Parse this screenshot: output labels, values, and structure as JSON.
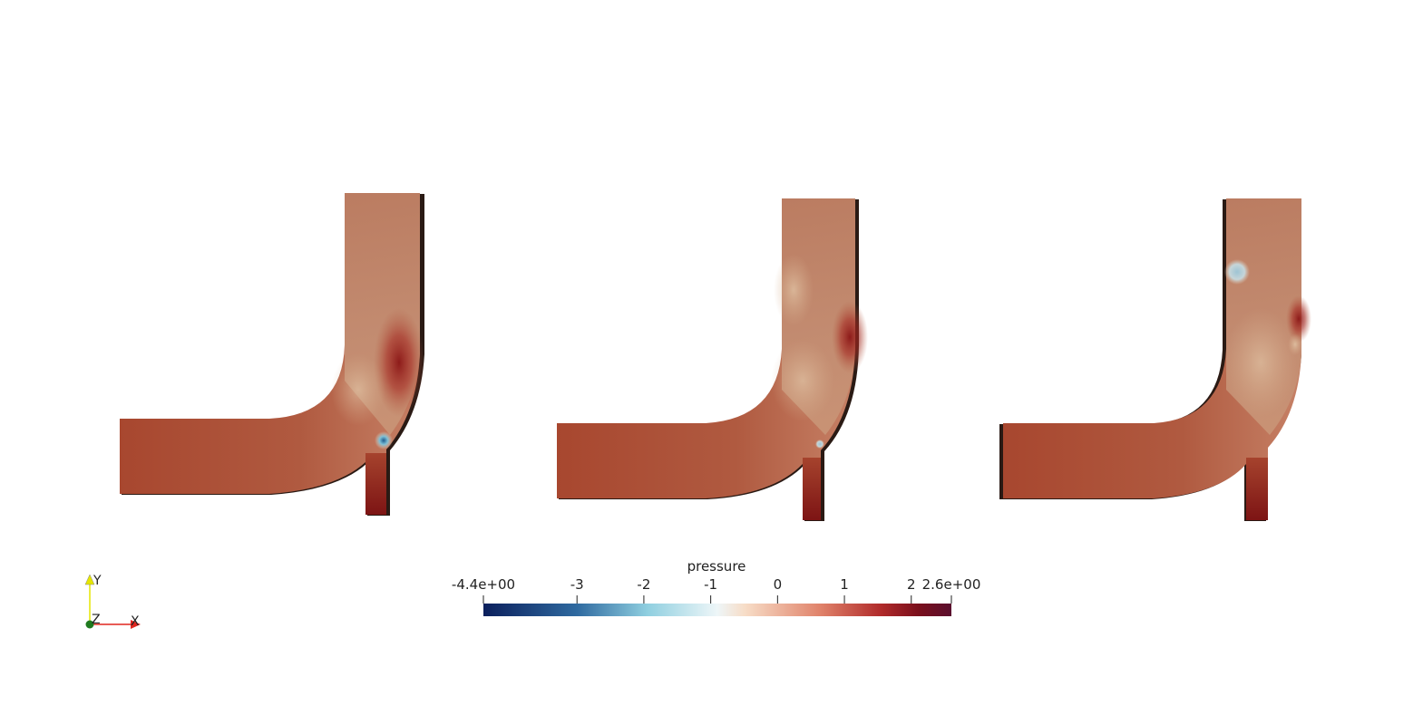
{
  "colorbar": {
    "title": "pressure",
    "min_label": "-4.4e+00",
    "max_label": "2.6e+00",
    "min": -4.4,
    "max": 2.6,
    "ticks": [
      {
        "value": -3,
        "label": "-3"
      },
      {
        "value": -2,
        "label": "-2"
      },
      {
        "value": -1,
        "label": "-1"
      },
      {
        "value": 0,
        "label": "0"
      },
      {
        "value": 1,
        "label": "1"
      },
      {
        "value": 2,
        "label": "2"
      }
    ],
    "colormap": [
      "#0b1f5c",
      "#2f6aa0",
      "#8fcfe0",
      "#eef6f8",
      "#f7dcc6",
      "#e0826a",
      "#b02a2a",
      "#7a0f1c",
      "#5a0f2e"
    ]
  },
  "axes_triad": {
    "y_label": "Y",
    "x_label": "X",
    "z_label": "Z",
    "x_color": "#e0261f",
    "y_color": "#e6e600",
    "z_color": "#1f7a1f"
  },
  "panels": [
    {
      "name": "panel-1",
      "base_color": "#b6694f"
    },
    {
      "name": "panel-2",
      "base_color": "#b8735a"
    },
    {
      "name": "panel-3",
      "base_color": "#b8735a"
    }
  ]
}
